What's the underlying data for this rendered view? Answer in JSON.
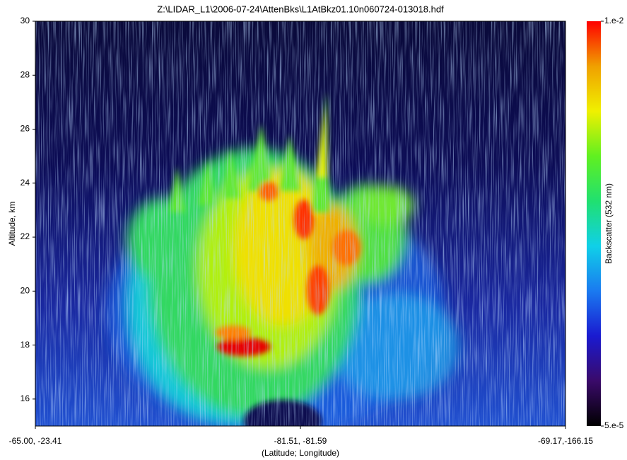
{
  "chart_data": {
    "type": "heatmap",
    "title": "Z:\\LIDAR_L1\\2006-07-24\\AttenBks\\L1AtBkz01.10n060724-013018.hdf",
    "xlabel": "(Latitude; Longitude)",
    "ylabel": "Altitude, km",
    "xtick_labels": [
      "-65.00, -23.41",
      "-81.51, -81.59",
      "-69.17,-166.15"
    ],
    "ylim": [
      15,
      30
    ],
    "yticks": [
      16,
      18,
      20,
      22,
      24,
      26,
      28,
      30
    ],
    "colorbar_label": "Backscatter (532 nm)",
    "clim": [
      5e-05,
      0.01
    ],
    "colorbar_log": true,
    "colorbar_ticks": [
      {
        "value": 0.01,
        "label": "1.e-2"
      },
      {
        "value": 5e-05,
        "label": "5.e-5"
      }
    ],
    "colormap": [
      "#000000",
      "#3a0a6a",
      "#1a1ad0",
      "#1a7af0",
      "#10d0e8",
      "#20e070",
      "#60f020",
      "#f0f000",
      "#f0a000",
      "#ff0000"
    ]
  }
}
